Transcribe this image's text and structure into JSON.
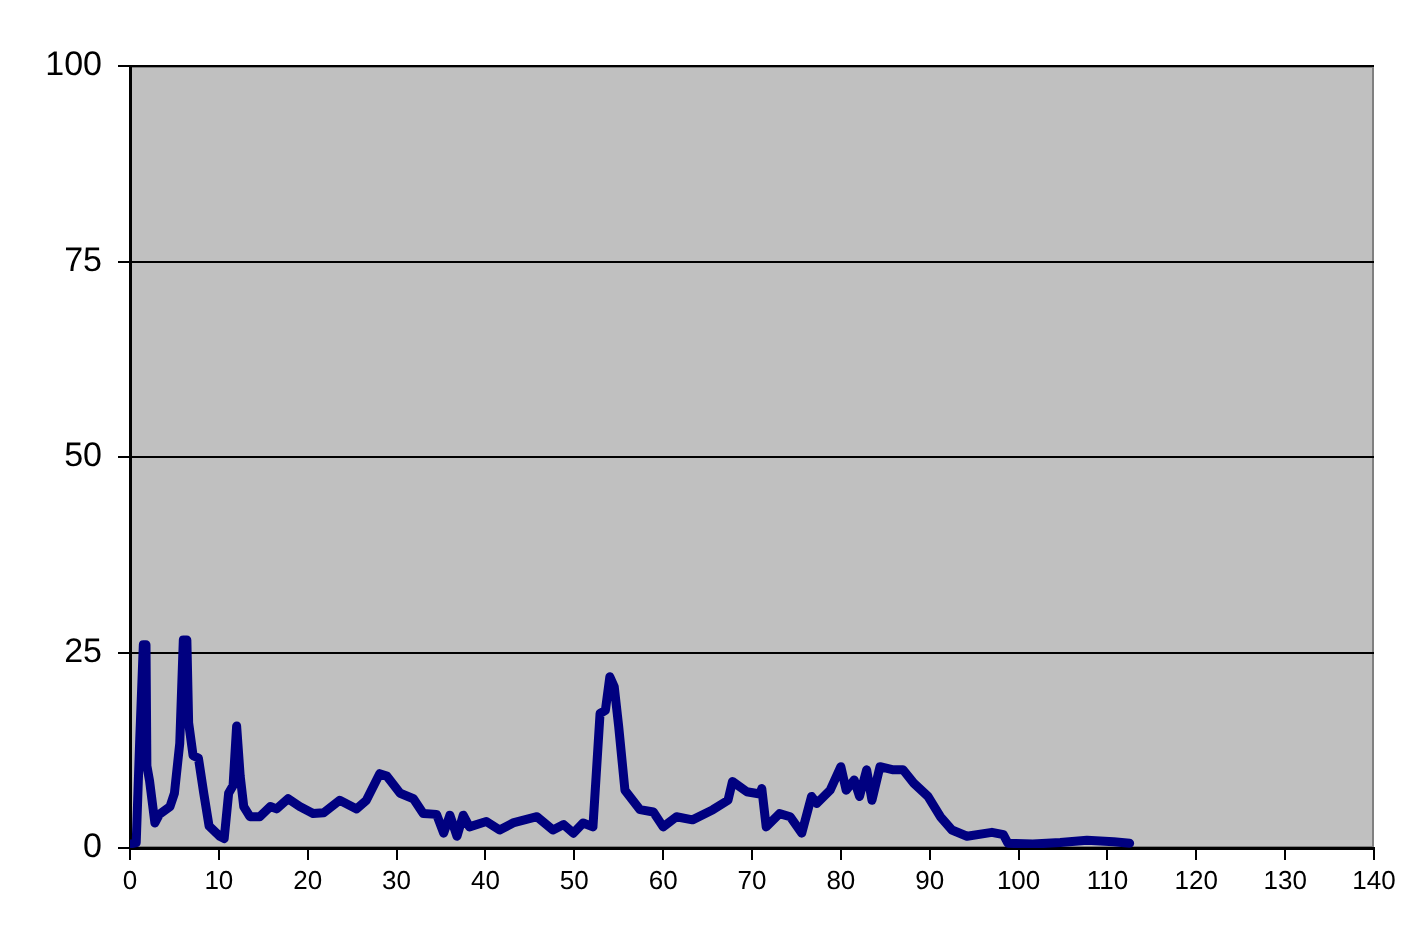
{
  "chart_data": {
    "type": "line",
    "x": [
      0,
      0.7,
      1.1,
      1.5,
      1.8,
      1.9,
      2.2,
      2.8,
      3.3,
      4.5,
      5.0,
      5.6,
      6.0,
      6.4,
      6.6,
      7.1,
      7.7,
      8.3,
      8.9,
      10.1,
      10.6,
      11.1,
      11.6,
      12.0,
      12.4,
      12.8,
      13.5,
      14.6,
      15.8,
      16.5,
      17.8,
      19.1,
      20.6,
      21.8,
      23.6,
      25.5,
      26.6,
      28.1,
      28.9,
      30.4,
      31.9,
      33.0,
      34.5,
      35.3,
      36.0,
      36.8,
      37.5,
      38.2,
      40.1,
      41.6,
      43.1,
      45.8,
      47.6,
      48.8,
      49.9,
      51.0,
      52.1,
      52.9,
      53.5,
      54.0,
      54.5,
      55.0,
      55.7,
      57.4,
      58.9,
      60.0,
      61.5,
      63.3,
      65.6,
      67.3,
      67.8,
      69.4,
      70.9,
      71.1,
      71.6,
      73.1,
      74.3,
      75.6,
      76.7,
      77.3,
      78.8,
      80.0,
      80.6,
      81.5,
      82.1,
      82.9,
      83.5,
      84.4,
      85.9,
      87.0,
      88.2,
      89.8,
      91.2,
      92.5,
      94.2,
      97.0,
      98.3,
      98.8,
      101.6,
      104.7,
      107.7,
      110.7,
      112.5
    ],
    "values": [
      0.5,
      0.7,
      14,
      26,
      26,
      10.5,
      8.6,
      3.2,
      4.3,
      5.3,
      7,
      13.4,
      26.6,
      26.6,
      16,
      11.8,
      11.5,
      7,
      2.8,
      1.5,
      1.2,
      7,
      8,
      15.6,
      9.2,
      5.3,
      4,
      4,
      5.3,
      5,
      6.3,
      5.3,
      4.4,
      4.5,
      6.1,
      5,
      6.1,
      9.5,
      9.2,
      7,
      6.3,
      4.4,
      4.3,
      1.9,
      4.2,
      1.5,
      4.2,
      2.7,
      3.4,
      2.3,
      3.2,
      4,
      2.3,
      3,
      1.9,
      3.2,
      2.7,
      17.2,
      17.6,
      21.9,
      20.6,
      15.5,
      7.4,
      4.9,
      4.6,
      2.7,
      4,
      3.6,
      4.9,
      6.1,
      8.5,
      7.2,
      6.9,
      7.6,
      2.7,
      4.4,
      4,
      1.9,
      6.6,
      5.7,
      7.4,
      10.4,
      7.4,
      8.7,
      6.6,
      10,
      6.1,
      10.4,
      10,
      10,
      8.3,
      6.6,
      4,
      2.3,
      1.5,
      2,
      1.7,
      0.6,
      0.5,
      0.7,
      1,
      0.8,
      0.6
    ],
    "color": "#000080",
    "xlim": [
      0,
      140
    ],
    "xticks": [
      0,
      10,
      20,
      30,
      40,
      50,
      60,
      70,
      80,
      90,
      100,
      110,
      120,
      130,
      140
    ],
    "ylim": [
      0,
      100
    ],
    "yticks": [
      0,
      25,
      50,
      75,
      100
    ],
    "grid": "y",
    "legend": false,
    "marker": "none",
    "line_style": "solid"
  }
}
